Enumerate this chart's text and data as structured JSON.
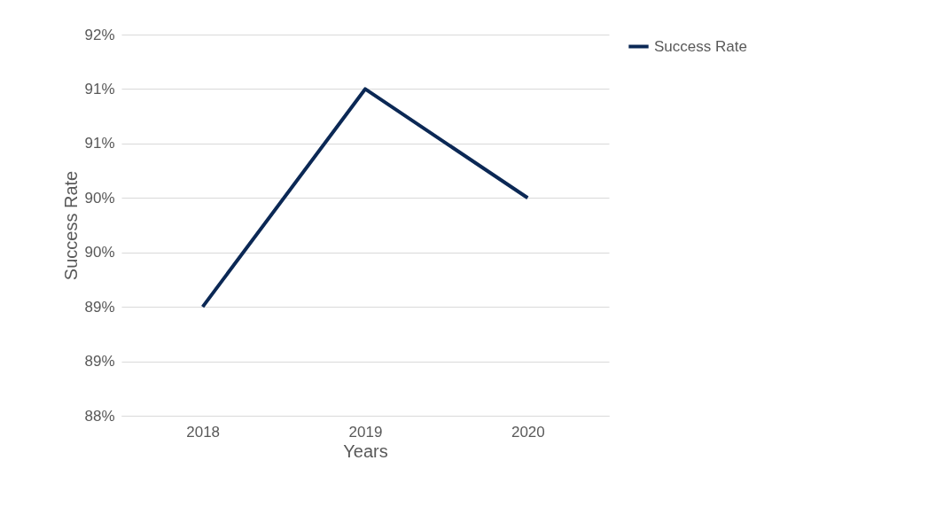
{
  "chart_data": {
    "type": "line",
    "xlabel": "Years",
    "ylabel": "Success Rate",
    "categories": [
      "2018",
      "2019",
      "2020"
    ],
    "series": [
      {
        "name": "Success Rate",
        "color": "#0b2855",
        "values": [
          89,
          91,
          90
        ]
      }
    ],
    "ylim": [
      88,
      91.5
    ],
    "yticks": [
      {
        "value": 88,
        "label": "88%"
      },
      {
        "value": 88.5,
        "label": "89%"
      },
      {
        "value": 89,
        "label": "89%"
      },
      {
        "value": 89.5,
        "label": "90%"
      },
      {
        "value": 90,
        "label": "90%"
      },
      {
        "value": 90.5,
        "label": "91%"
      },
      {
        "value": 91,
        "label": "91%"
      },
      {
        "value": 91.5,
        "label": "92%"
      }
    ],
    "grid": "y",
    "legend": "right",
    "marker": "none",
    "line_style": "solid"
  }
}
